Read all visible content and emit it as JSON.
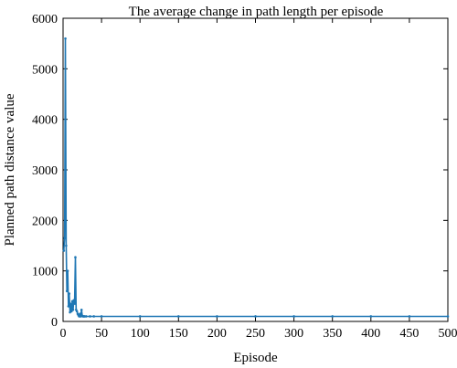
{
  "chart_data": {
    "type": "line",
    "title": "The average change in path length per episode",
    "xlabel": "Episode",
    "ylabel": "Planned path distance value",
    "xlim": [
      0,
      500
    ],
    "ylim": [
      0,
      6000
    ],
    "xticks": [
      0,
      50,
      100,
      150,
      200,
      250,
      300,
      350,
      400,
      450,
      500
    ],
    "yticks": [
      0,
      1000,
      2000,
      3000,
      4000,
      5000,
      6000
    ],
    "grid": false,
    "legend": "none",
    "line_color": "#1f77b4",
    "series": [
      {
        "x": [
          1,
          2,
          3,
          4,
          5,
          6,
          7,
          8,
          9,
          10,
          11,
          12,
          13,
          14,
          15,
          16,
          17,
          18,
          19,
          20,
          21,
          22,
          23,
          24,
          25,
          26,
          27,
          28,
          30,
          35,
          40,
          50,
          100,
          150,
          200,
          250,
          300,
          350,
          400,
          450,
          500
        ],
        "y": [
          1400,
          1650,
          5600,
          1500,
          600,
          1000,
          300,
          550,
          180,
          350,
          200,
          400,
          230,
          420,
          350,
          1270,
          230,
          200,
          150,
          120,
          100,
          150,
          100,
          230,
          110,
          100,
          100,
          100,
          100,
          100,
          100,
          100,
          100,
          100,
          100,
          100,
          100,
          100,
          100,
          100,
          100
        ]
      }
    ]
  }
}
